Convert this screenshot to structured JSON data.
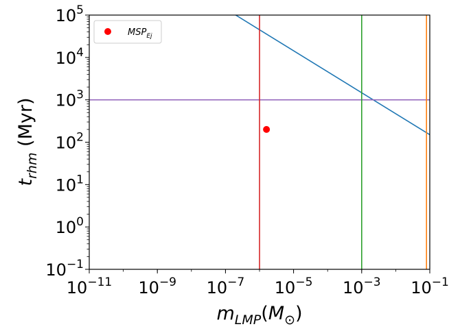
{
  "chart_data": {
    "type": "scatter",
    "title": "",
    "xscale": "log",
    "yscale": "log",
    "xlim": [
      1e-11,
      0.1
    ],
    "ylim": [
      0.1,
      100000
    ],
    "xlabel": {
      "base": "m",
      "sub": "LMP",
      "paren_open": "(",
      "unit": "M",
      "unit_sub": "⊙",
      "paren_close": ")"
    },
    "ylabel": {
      "base": "t",
      "sub": "rhm",
      "rest": " (Myr)"
    },
    "x_ticks": [
      {
        "value": 1e-11,
        "base": "10",
        "exp": "−11"
      },
      {
        "value": 1e-09,
        "base": "10",
        "exp": "−9"
      },
      {
        "value": 1e-07,
        "base": "10",
        "exp": "−7"
      },
      {
        "value": 1e-05,
        "base": "10",
        "exp": "−5"
      },
      {
        "value": 0.001,
        "base": "10",
        "exp": "−3"
      },
      {
        "value": 0.1,
        "base": "10",
        "exp": "−1"
      }
    ],
    "y_ticks": [
      {
        "value": 0.1,
        "base": "10",
        "exp": "−1"
      },
      {
        "value": 1,
        "base": "10",
        "exp": "0"
      },
      {
        "value": 10,
        "base": "10",
        "exp": "1"
      },
      {
        "value": 100,
        "base": "10",
        "exp": "2"
      },
      {
        "value": 1000,
        "base": "10",
        "exp": "3"
      },
      {
        "value": 10000,
        "base": "10",
        "exp": "4"
      },
      {
        "value": 100000,
        "base": "10",
        "exp": "5"
      }
    ],
    "lines": [
      {
        "name": "diagonal",
        "color": "#1f77b4",
        "points": [
          [
            2e-07,
            100000
          ],
          [
            0.1,
            150
          ]
        ]
      },
      {
        "name": "horizontal",
        "color": "#9467bd",
        "points": [
          [
            1e-11,
            1000
          ],
          [
            0.1,
            1000
          ]
        ]
      },
      {
        "name": "vline-red",
        "color": "#d62728",
        "points": [
          [
            1e-06,
            0.1
          ],
          [
            1e-06,
            100000
          ]
        ]
      },
      {
        "name": "vline-green",
        "color": "#2ca02c",
        "points": [
          [
            0.001,
            0.1
          ],
          [
            0.001,
            100000
          ]
        ]
      },
      {
        "name": "vline-orange",
        "color": "#ff7f0e",
        "points": [
          [
            0.08,
            0.1
          ],
          [
            0.08,
            100000
          ]
        ]
      }
    ],
    "series": [
      {
        "name": "MSP",
        "name_sub": "Ej",
        "color": "#ff0000",
        "marker": "circle",
        "points": [
          [
            1.6e-06,
            200
          ]
        ]
      }
    ],
    "legend": {
      "position": "top-left"
    }
  }
}
